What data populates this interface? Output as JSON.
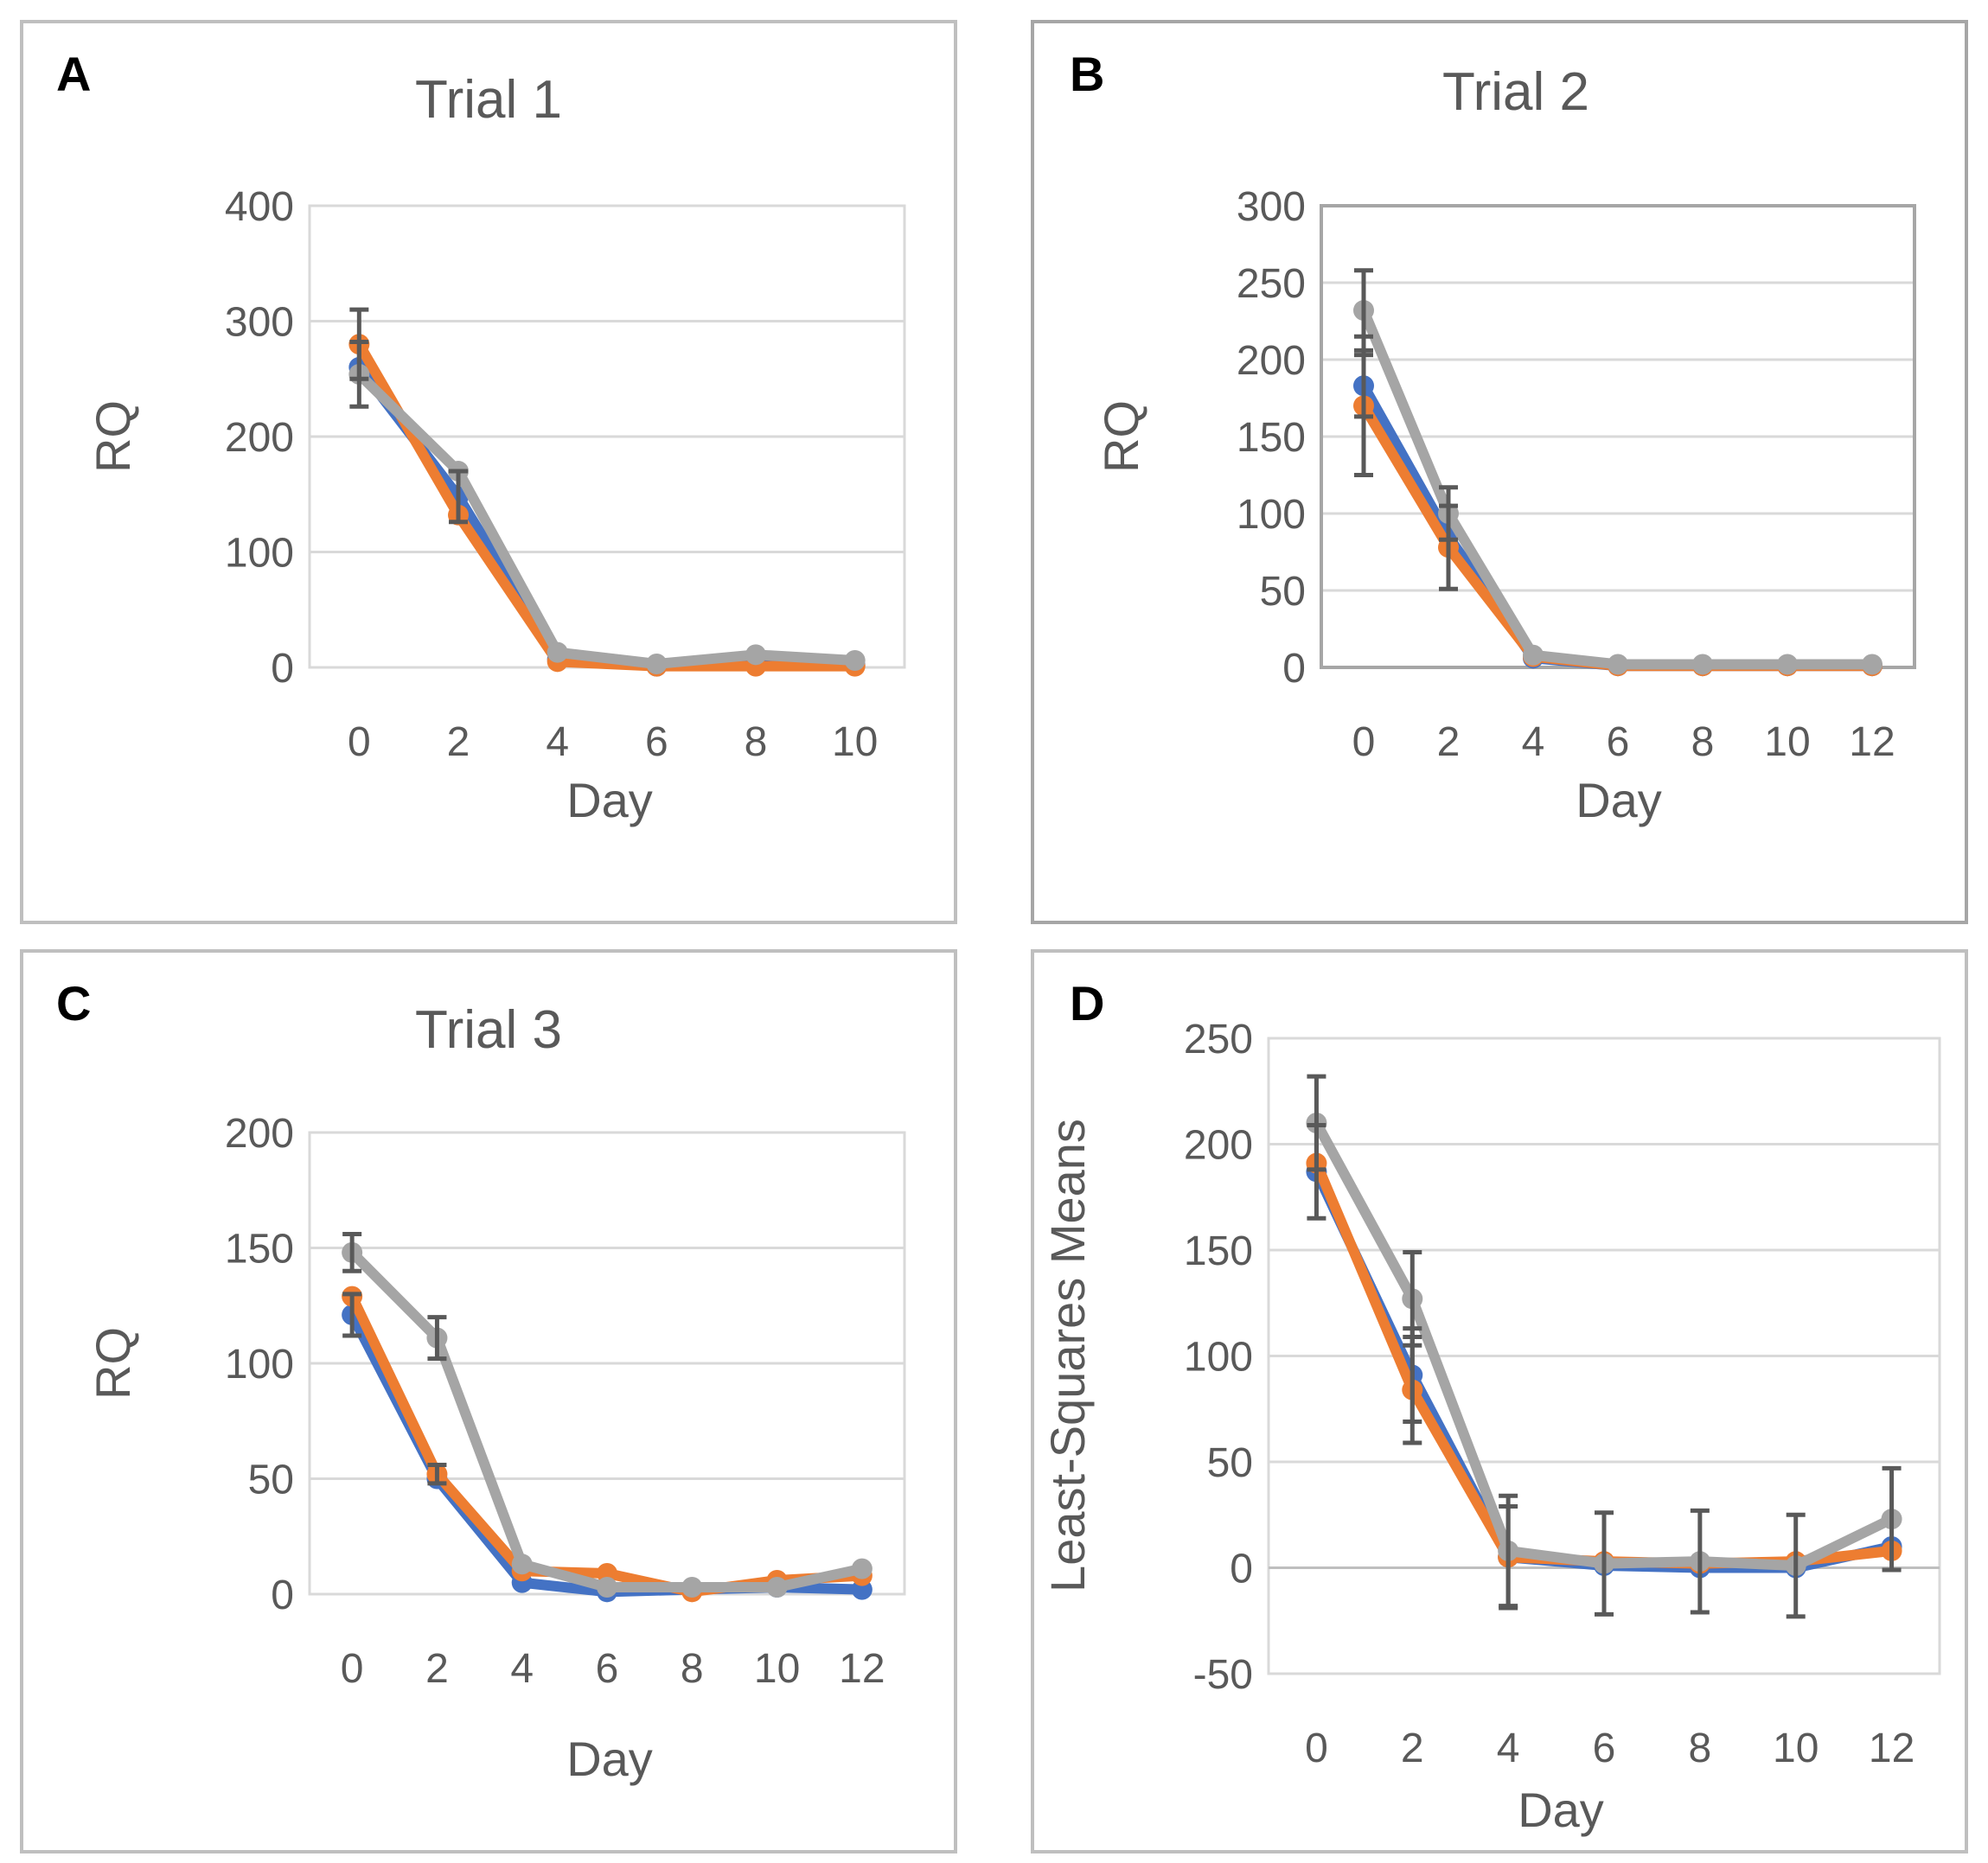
{
  "chart_data": [
    {
      "panel_label": "A",
      "type": "line",
      "title": "Trial 1",
      "xlabel": "Day",
      "ylabel": "RQ",
      "x": [
        0,
        2,
        4,
        6,
        8,
        10
      ],
      "xticks": [
        "0",
        "2",
        "4",
        "6",
        "8",
        "10"
      ],
      "ylim": [
        0,
        400
      ],
      "yticks": [
        0,
        100,
        200,
        300,
        400
      ],
      "grid": true,
      "series": [
        {
          "name": "blue",
          "color": "#4472C4",
          "values": [
            260,
            148,
            7,
            1,
            2,
            2
          ],
          "errors": [
            0,
            22,
            0,
            0,
            0,
            0
          ]
        },
        {
          "name": "orange",
          "color": "#ED7D31",
          "values": [
            280,
            132,
            5,
            1,
            1,
            1
          ],
          "errors": [
            30,
            0,
            0,
            0,
            0,
            0
          ]
        },
        {
          "name": "gray",
          "color": "#A5A5A5",
          "values": [
            254,
            170,
            13,
            3,
            11,
            6
          ],
          "errors": [
            28,
            0,
            0,
            0,
            0,
            0
          ]
        }
      ]
    },
    {
      "panel_label": "B",
      "type": "line",
      "title": "Trial 2",
      "xlabel": "Day",
      "ylabel": "RQ",
      "x": [
        0,
        2,
        4,
        6,
        8,
        10,
        12
      ],
      "xticks": [
        "0",
        "2",
        "4",
        "6",
        "8",
        "10",
        "12"
      ],
      "ylim": [
        0,
        300
      ],
      "yticks": [
        0,
        50,
        100,
        150,
        200,
        250,
        300
      ],
      "grid": true,
      "series": [
        {
          "name": "blue",
          "color": "#4472C4",
          "values": [
            183,
            85,
            6,
            1,
            1,
            1,
            1
          ],
          "errors": [
            20,
            0,
            0,
            0,
            0,
            0,
            0
          ]
        },
        {
          "name": "orange",
          "color": "#ED7D31",
          "values": [
            170,
            78,
            7,
            1,
            1,
            1,
            1
          ],
          "errors": [
            45,
            27,
            0,
            0,
            0,
            0,
            0
          ]
        },
        {
          "name": "gray",
          "color": "#A5A5A5",
          "values": [
            232,
            100,
            8,
            2,
            2,
            2,
            2
          ],
          "errors": [
            26,
            17,
            0,
            0,
            0,
            0,
            0
          ]
        }
      ]
    },
    {
      "panel_label": "C",
      "type": "line",
      "title": "Trial 3",
      "xlabel": "Day",
      "ylabel": "RQ",
      "x": [
        0,
        2,
        4,
        6,
        8,
        10,
        12
      ],
      "xticks": [
        "0",
        "2",
        "4",
        "6",
        "8",
        "10",
        "12"
      ],
      "ylim": [
        0,
        200
      ],
      "yticks": [
        0,
        50,
        100,
        150,
        200
      ],
      "grid": true,
      "series": [
        {
          "name": "blue",
          "color": "#4472C4",
          "values": [
            121,
            50,
            5,
            1,
            2,
            3,
            2
          ],
          "errors": [
            9,
            0,
            0,
            0,
            0,
            0,
            0
          ]
        },
        {
          "name": "orange",
          "color": "#ED7D31",
          "values": [
            129,
            52,
            10,
            9,
            1,
            6,
            8
          ],
          "errors": [
            0,
            4,
            0,
            0,
            0,
            0,
            0
          ]
        },
        {
          "name": "gray",
          "color": "#A5A5A5",
          "values": [
            148,
            111,
            13,
            3,
            3,
            3,
            11
          ],
          "errors": [
            8,
            9,
            0,
            0,
            0,
            0,
            0
          ]
        }
      ]
    },
    {
      "panel_label": "D",
      "type": "line",
      "title": "",
      "xlabel": "Day",
      "ylabel": "Least-Squares Means",
      "x": [
        0,
        2,
        4,
        6,
        8,
        10,
        12
      ],
      "xticks": [
        "0",
        "2",
        "4",
        "6",
        "8",
        "10",
        "12"
      ],
      "ylim": [
        -50,
        250
      ],
      "yticks": [
        -50,
        0,
        50,
        100,
        150,
        200,
        250
      ],
      "grid": true,
      "series": [
        {
          "name": "blue",
          "color": "#4472C4",
          "values": [
            187,
            91,
            5,
            1,
            0,
            0,
            10
          ],
          "errors": [
            22,
            22,
            24,
            0,
            0,
            0,
            0
          ]
        },
        {
          "name": "orange",
          "color": "#ED7D31",
          "values": [
            191,
            84,
            5,
            3,
            2,
            3,
            8
          ],
          "errors": [
            0,
            25,
            0,
            0,
            0,
            0,
            0
          ]
        },
        {
          "name": "gray",
          "color": "#A5A5A5",
          "values": [
            210,
            127,
            8,
            2,
            3,
            1,
            23
          ],
          "errors": [
            22,
            22,
            26,
            24,
            24,
            24,
            24
          ]
        }
      ]
    }
  ]
}
